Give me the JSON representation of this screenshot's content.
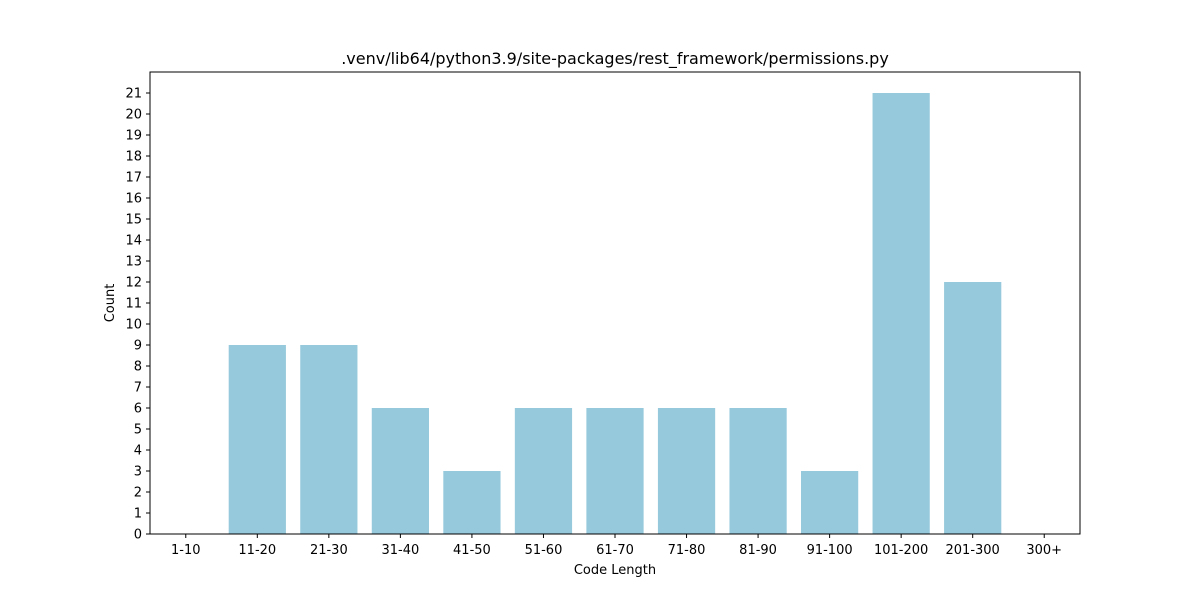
{
  "chart_data": {
    "type": "bar",
    "title": ".venv/lib64/python3.9/site-packages/rest_framework/permissions.py",
    "xlabel": "Code Length",
    "ylabel": "Count",
    "categories": [
      "1-10",
      "11-20",
      "21-30",
      "31-40",
      "41-50",
      "51-60",
      "61-70",
      "71-80",
      "81-90",
      "91-100",
      "101-200",
      "201-300",
      "300+"
    ],
    "values": [
      0,
      9,
      9,
      6,
      3,
      6,
      6,
      6,
      6,
      3,
      21,
      12,
      0
    ],
    "ylim": [
      0,
      22
    ],
    "yticks": [
      0,
      1,
      2,
      3,
      4,
      5,
      6,
      7,
      8,
      9,
      10,
      11,
      12,
      13,
      14,
      15,
      16,
      17,
      18,
      19,
      20,
      21
    ],
    "bar_color": "#96c9dc",
    "grid": false,
    "legend": false
  }
}
